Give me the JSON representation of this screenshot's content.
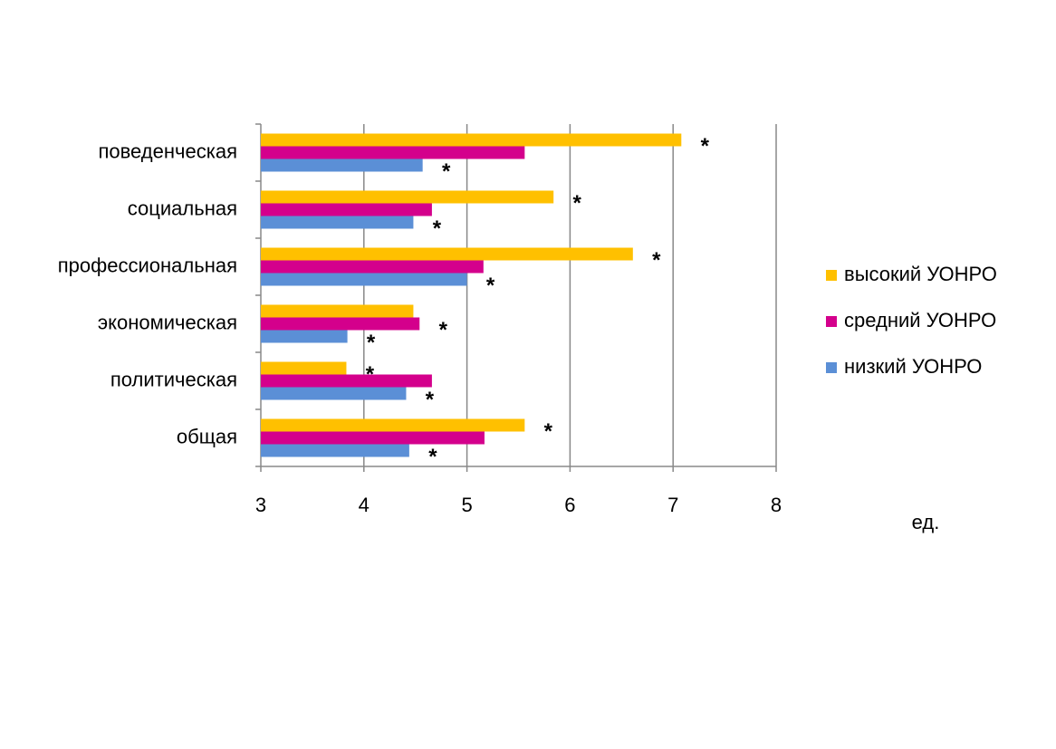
{
  "chart_data": {
    "type": "bar",
    "orientation": "horizontal",
    "categories": [
      "поведенческая",
      "социальная",
      "профессиональная",
      "экономическая",
      "политическая",
      "общая"
    ],
    "series": [
      {
        "name": "высокий УОНРО",
        "color": "#ffc000",
        "values": [
          7.08,
          5.84,
          6.61,
          4.48,
          3.83,
          5.56
        ],
        "significance": [
          "*",
          "*",
          "*",
          null,
          "*",
          "*"
        ]
      },
      {
        "name": "средний УОНРО",
        "color": "#d4008c",
        "values": [
          5.56,
          4.66,
          5.16,
          4.54,
          4.66,
          5.17
        ],
        "significance": [
          null,
          null,
          null,
          "*",
          null,
          null
        ]
      },
      {
        "name": "низкий УОНРО",
        "color": "#5b8fd6",
        "values": [
          4.57,
          4.48,
          5.0,
          3.84,
          4.41,
          4.44
        ],
        "significance": [
          "*",
          "*",
          "*",
          "*",
          "*",
          "*"
        ]
      }
    ],
    "xlim": [
      3,
      8
    ],
    "xticks": [
      3,
      4,
      5,
      6,
      7,
      8
    ],
    "xlabel": "ед.",
    "grid": true,
    "legend": "right"
  }
}
